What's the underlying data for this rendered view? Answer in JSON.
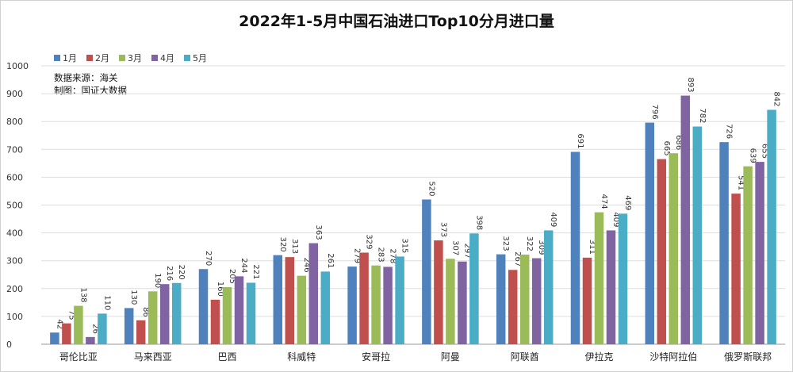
{
  "chart_data": {
    "type": "bar",
    "title": "2022年1-5月中国石油进口Top10分月进口量",
    "categories": [
      "哥伦比亚",
      "马来西亚",
      "巴西",
      "科威特",
      "安哥拉",
      "阿曼",
      "阿联酋",
      "伊拉克",
      "沙特阿拉伯",
      "俄罗斯联邦"
    ],
    "series": [
      {
        "name": "1月",
        "color": "#4F81BD",
        "values": [
          42,
          130,
          270,
          320,
          279,
          520,
          323,
          691,
          796,
          726
        ]
      },
      {
        "name": "2月",
        "color": "#C0504D",
        "values": [
          75,
          86,
          160,
          313,
          329,
          373,
          267,
          311,
          665,
          541
        ]
      },
      {
        "name": "3月",
        "color": "#9BBB59",
        "values": [
          138,
          190,
          205,
          246,
          283,
          307,
          322,
          474,
          686,
          639
        ]
      },
      {
        "name": "4月",
        "color": "#8064A2",
        "values": [
          26,
          216,
          244,
          363,
          278,
          297,
          309,
          409,
          893,
          655
        ]
      },
      {
        "name": "5月",
        "color": "#4BACC6",
        "values": [
          110,
          220,
          221,
          261,
          315,
          398,
          409,
          469,
          782,
          842
        ]
      }
    ],
    "ylim": [
      0,
      1000
    ],
    "yticks": [
      0,
      100,
      200,
      300,
      400,
      500,
      600,
      700,
      800,
      900,
      1000
    ],
    "grid": true,
    "legend_position": "top-left"
  },
  "notes": {
    "source": "数据来源：海关",
    "author": "制图：国证大数据"
  }
}
